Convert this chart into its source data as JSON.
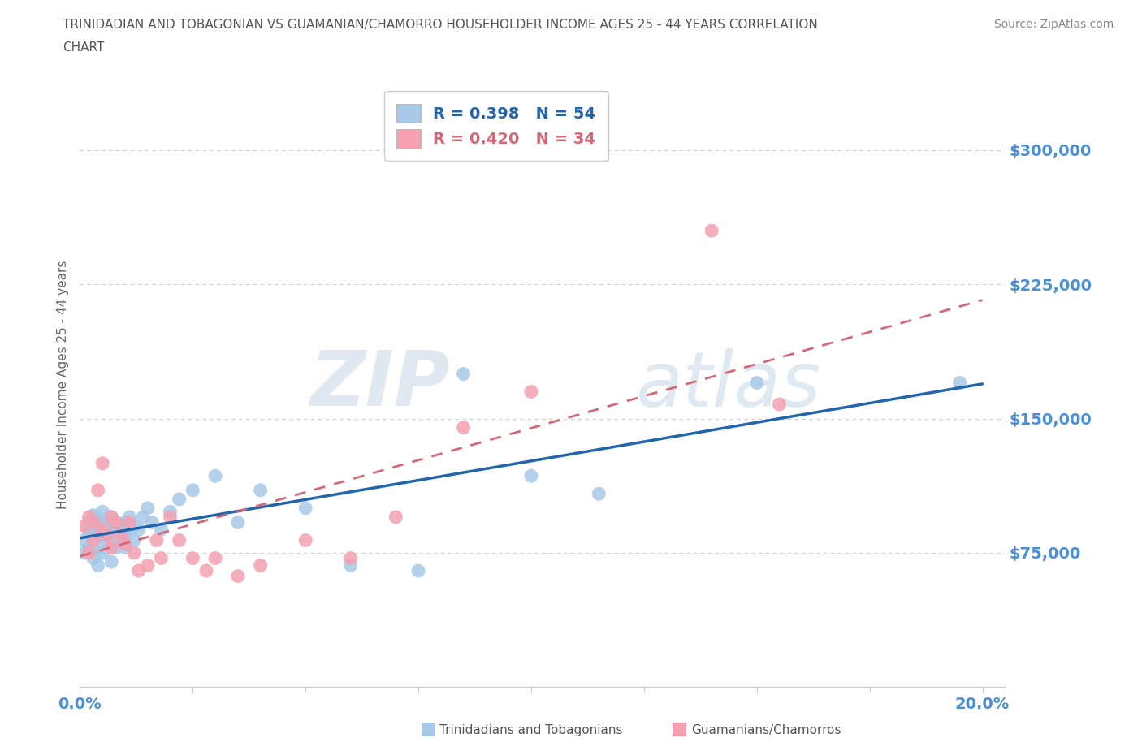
{
  "title_line1": "TRINIDADIAN AND TOBAGONIAN VS GUAMANIAN/CHAMORRO HOUSEHOLDER INCOME AGES 25 - 44 YEARS CORRELATION",
  "title_line2": "CHART",
  "source": "Source: ZipAtlas.com",
  "ylabel": "Householder Income Ages 25 - 44 years",
  "xlim": [
    0.0,
    0.205
  ],
  "ylim": [
    0,
    337500
  ],
  "yticks": [
    75000,
    150000,
    225000,
    300000
  ],
  "ytick_labels": [
    "$75,000",
    "$150,000",
    "$225,000",
    "$300,000"
  ],
  "xtick_positions": [
    0.0,
    0.025,
    0.05,
    0.075,
    0.1,
    0.125,
    0.15,
    0.175,
    0.2
  ],
  "xtick_show": [
    "0.0%",
    "",
    "",
    "",
    "",
    "",
    "",
    "",
    "20.0%"
  ],
  "blue_R": 0.398,
  "blue_N": 54,
  "pink_R": 0.42,
  "pink_N": 34,
  "blue_color": "#a8c8e8",
  "pink_color": "#f4a0b0",
  "blue_line_color": "#2166ac",
  "pink_line_color": "#d46878",
  "title_color": "#555555",
  "axis_color": "#4a90d9",
  "blue_x": [
    0.001,
    0.001,
    0.002,
    0.002,
    0.002,
    0.003,
    0.003,
    0.003,
    0.003,
    0.004,
    0.004,
    0.004,
    0.004,
    0.005,
    0.005,
    0.005,
    0.005,
    0.006,
    0.006,
    0.006,
    0.007,
    0.007,
    0.007,
    0.007,
    0.008,
    0.008,
    0.009,
    0.009,
    0.01,
    0.01,
    0.01,
    0.011,
    0.011,
    0.012,
    0.012,
    0.013,
    0.014,
    0.015,
    0.016,
    0.018,
    0.02,
    0.022,
    0.025,
    0.03,
    0.035,
    0.04,
    0.05,
    0.06,
    0.075,
    0.085,
    0.1,
    0.115,
    0.15,
    0.195
  ],
  "blue_y": [
    82000,
    75000,
    88000,
    92000,
    78000,
    85000,
    90000,
    96000,
    72000,
    88000,
    94000,
    78000,
    68000,
    85000,
    92000,
    98000,
    75000,
    88000,
    94000,
    82000,
    80000,
    87000,
    95000,
    70000,
    88000,
    78000,
    82000,
    90000,
    85000,
    92000,
    78000,
    88000,
    95000,
    90000,
    82000,
    88000,
    95000,
    100000,
    92000,
    88000,
    98000,
    105000,
    110000,
    118000,
    92000,
    110000,
    100000,
    68000,
    65000,
    175000,
    118000,
    108000,
    170000,
    170000
  ],
  "pink_x": [
    0.001,
    0.002,
    0.002,
    0.003,
    0.003,
    0.004,
    0.005,
    0.005,
    0.006,
    0.007,
    0.007,
    0.008,
    0.009,
    0.01,
    0.011,
    0.012,
    0.013,
    0.015,
    0.017,
    0.018,
    0.02,
    0.022,
    0.025,
    0.028,
    0.03,
    0.035,
    0.04,
    0.05,
    0.06,
    0.07,
    0.085,
    0.1,
    0.14,
    0.155
  ],
  "pink_y": [
    90000,
    95000,
    75000,
    92000,
    82000,
    110000,
    88000,
    125000,
    85000,
    95000,
    78000,
    92000,
    85000,
    80000,
    92000,
    75000,
    65000,
    68000,
    82000,
    72000,
    95000,
    82000,
    72000,
    65000,
    72000,
    62000,
    68000,
    82000,
    72000,
    95000,
    145000,
    165000,
    255000,
    158000
  ]
}
